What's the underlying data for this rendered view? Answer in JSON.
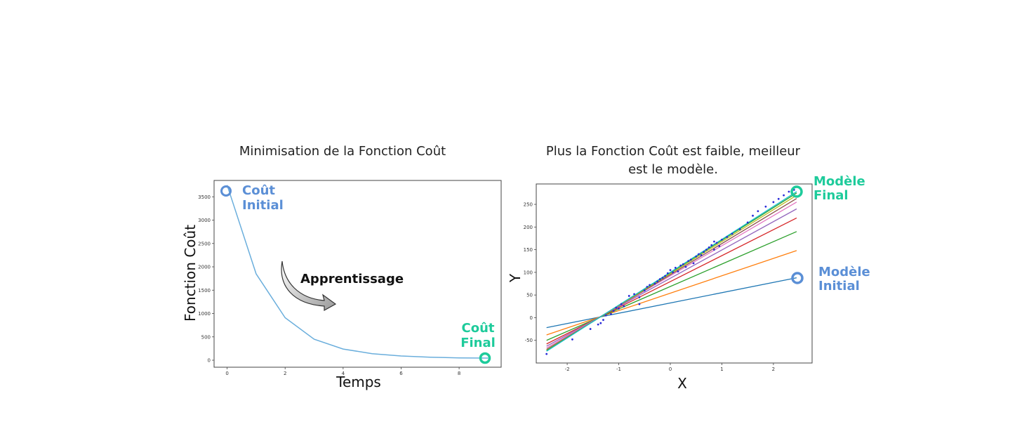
{
  "colors": {
    "blue": "#5b8fd6",
    "green": "#1ecb9b",
    "line": "#6aaedc",
    "scatter": "#2a2ad8"
  },
  "chart_data": [
    {
      "type": "line",
      "title": "Minimisation de la Fonction Coût",
      "xlabel": "Temps",
      "ylabel": "Fonction Coût",
      "xlim": [
        -0.45,
        9.45
      ],
      "ylim": [
        -150,
        3850
      ],
      "xticks": [
        0,
        2,
        4,
        6,
        8
      ],
      "yticks": [
        0,
        500,
        1000,
        1500,
        2000,
        2500,
        3000,
        3500
      ],
      "x": [
        0,
        1,
        2,
        3,
        4,
        5,
        6,
        7,
        8,
        9
      ],
      "y": [
        3750,
        1850,
        910,
        450,
        240,
        140,
        90,
        65,
        50,
        45
      ],
      "annotations": {
        "initial": [
          "Coût",
          "Initial"
        ],
        "final": [
          "Coût",
          "Final"
        ],
        "arrow": "Apprentissage"
      }
    },
    {
      "type": "scatter",
      "title_lines": [
        "Plus la Fonction Coût est faible, meilleur",
        "est le modèle."
      ],
      "xlabel": "X",
      "ylabel": "Y",
      "xlim": [
        -2.6,
        2.75
      ],
      "ylim": [
        -100,
        295
      ],
      "xticks": [
        -2,
        -1,
        0,
        1,
        2
      ],
      "yticks": [
        -50,
        0,
        50,
        100,
        150,
        200,
        250
      ],
      "lines": [
        {
          "color": "#1f77b4",
          "x": [
            -2.4,
            2.45
          ],
          "y": [
            -22,
            88
          ]
        },
        {
          "color": "#ff7f0e",
          "x": [
            -2.4,
            2.45
          ],
          "y": [
            -38,
            148
          ]
        },
        {
          "color": "#2ca02c",
          "x": [
            -2.4,
            2.45
          ],
          "y": [
            -50,
            190
          ]
        },
        {
          "color": "#d62728",
          "x": [
            -2.4,
            2.45
          ],
          "y": [
            -58,
            220
          ]
        },
        {
          "color": "#9467bd",
          "x": [
            -2.4,
            2.45
          ],
          "y": [
            -63,
            240
          ]
        },
        {
          "color": "#e377c2",
          "x": [
            -2.4,
            2.45
          ],
          "y": [
            -67,
            255
          ]
        },
        {
          "color": "#8c564b",
          "x": [
            -2.4,
            2.45
          ],
          "y": [
            -70,
            263
          ]
        },
        {
          "color": "#bcbd22",
          "x": [
            -2.4,
            2.45
          ],
          "y": [
            -72,
            270
          ]
        },
        {
          "color": "#2ca02c",
          "x": [
            -2.4,
            2.45
          ],
          "y": [
            -73,
            275
          ]
        },
        {
          "color": "#17becf",
          "x": [
            -2.4,
            2.45
          ],
          "y": [
            -74,
            278
          ]
        }
      ],
      "points": [
        [
          -2.4,
          -80
        ],
        [
          -1.9,
          -48
        ],
        [
          -1.55,
          -25
        ],
        [
          -1.4,
          -15
        ],
        [
          -1.3,
          -5
        ],
        [
          -1.25,
          5
        ],
        [
          -1.15,
          8
        ],
        [
          -1.1,
          15
        ],
        [
          -1.05,
          22
        ],
        [
          -1.0,
          20
        ],
        [
          -0.95,
          30
        ],
        [
          -0.9,
          25
        ],
        [
          -0.8,
          48
        ],
        [
          -0.7,
          52
        ],
        [
          -0.6,
          45
        ],
        [
          -0.5,
          60
        ],
        [
          -0.45,
          68
        ],
        [
          -0.4,
          72
        ],
        [
          -0.3,
          75
        ],
        [
          -0.25,
          80
        ],
        [
          -0.2,
          85
        ],
        [
          -0.15,
          88
        ],
        [
          -0.1,
          92
        ],
        [
          -0.05,
          98
        ],
        [
          0.0,
          105
        ],
        [
          0.05,
          100
        ],
        [
          0.1,
          110
        ],
        [
          0.15,
          102
        ],
        [
          0.2,
          115
        ],
        [
          0.25,
          118
        ],
        [
          0.3,
          112
        ],
        [
          0.35,
          125
        ],
        [
          0.4,
          128
        ],
        [
          0.45,
          120
        ],
        [
          0.5,
          135
        ],
        [
          0.55,
          140
        ],
        [
          0.6,
          138
        ],
        [
          0.65,
          145
        ],
        [
          0.7,
          150
        ],
        [
          0.75,
          155
        ],
        [
          0.8,
          160
        ],
        [
          0.85,
          168
        ],
        [
          0.9,
          165
        ],
        [
          0.95,
          158
        ],
        [
          1.0,
          172
        ],
        [
          1.1,
          178
        ],
        [
          1.2,
          185
        ],
        [
          1.35,
          195
        ],
        [
          1.5,
          210
        ],
        [
          1.6,
          225
        ],
        [
          1.7,
          235
        ],
        [
          1.85,
          245
        ],
        [
          2.0,
          255
        ],
        [
          2.1,
          262
        ],
        [
          2.2,
          270
        ],
        [
          2.3,
          278
        ],
        [
          2.4,
          282
        ],
        [
          -0.6,
          30
        ],
        [
          -1.35,
          -12
        ],
        [
          0.85,
          150
        ]
      ],
      "annotations": {
        "final": [
          "Modèle",
          "Final"
        ],
        "initial": [
          "Modèle",
          "Initial"
        ]
      }
    }
  ]
}
